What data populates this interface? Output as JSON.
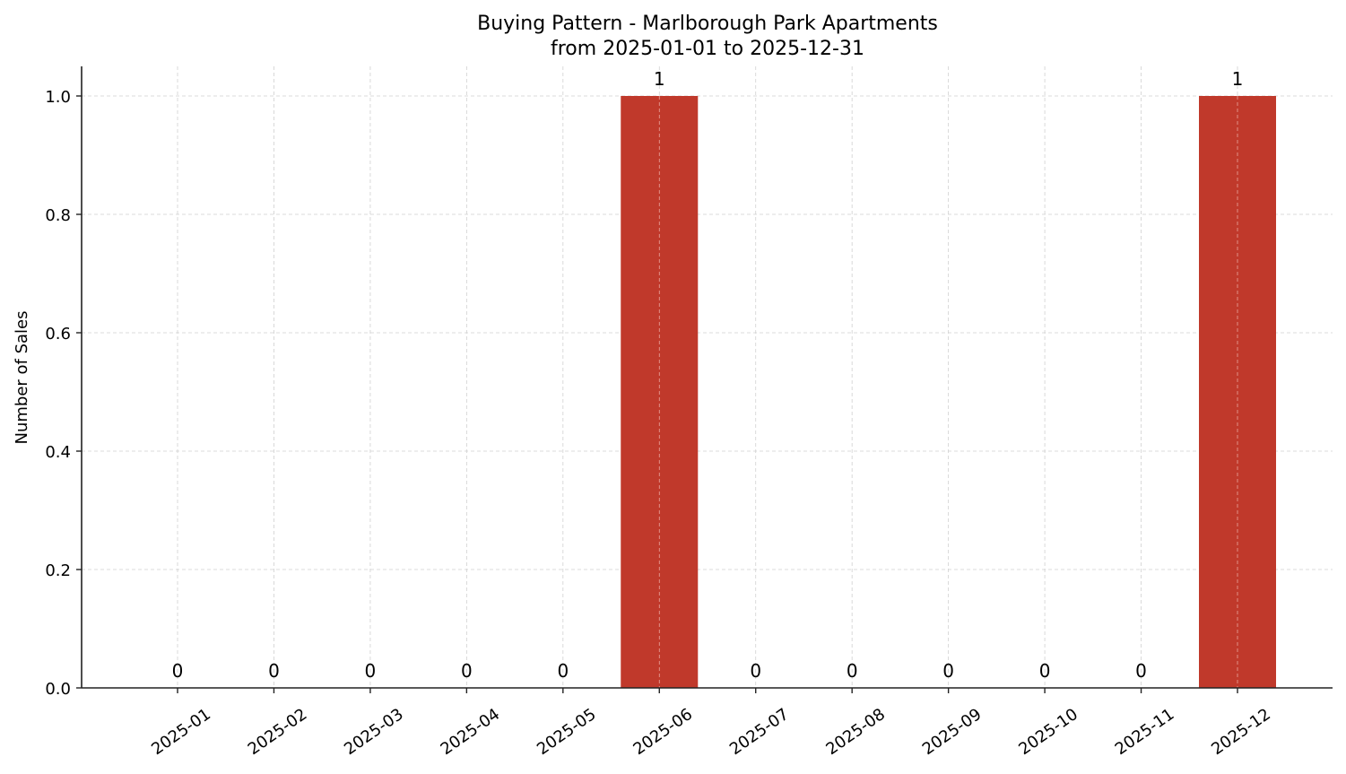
{
  "chart_data": {
    "type": "bar",
    "title": "Buying Pattern - Marlborough Park Apartments",
    "subtitle": "from 2025-01-01 to 2025-12-31",
    "xlabel": "",
    "ylabel": "Number of Sales",
    "categories": [
      "2025-01",
      "2025-02",
      "2025-03",
      "2025-04",
      "2025-05",
      "2025-06",
      "2025-07",
      "2025-08",
      "2025-09",
      "2025-10",
      "2025-11",
      "2025-12"
    ],
    "values": [
      0,
      0,
      0,
      0,
      0,
      1,
      0,
      0,
      0,
      0,
      0,
      1
    ],
    "bar_labels": [
      "0",
      "0",
      "0",
      "0",
      "0",
      "1",
      "0",
      "0",
      "0",
      "0",
      "0",
      "1"
    ],
    "ylim": [
      0,
      1.05
    ],
    "yticks": [
      0.0,
      0.2,
      0.4,
      0.6,
      0.8,
      1.0
    ],
    "ytick_labels": [
      "0.0",
      "0.2",
      "0.4",
      "0.6",
      "0.8",
      "1.0"
    ],
    "grid": true,
    "grid_style": "dashed",
    "legend": null,
    "bar_color": "#C0392B",
    "x_tick_rotation": -35
  }
}
